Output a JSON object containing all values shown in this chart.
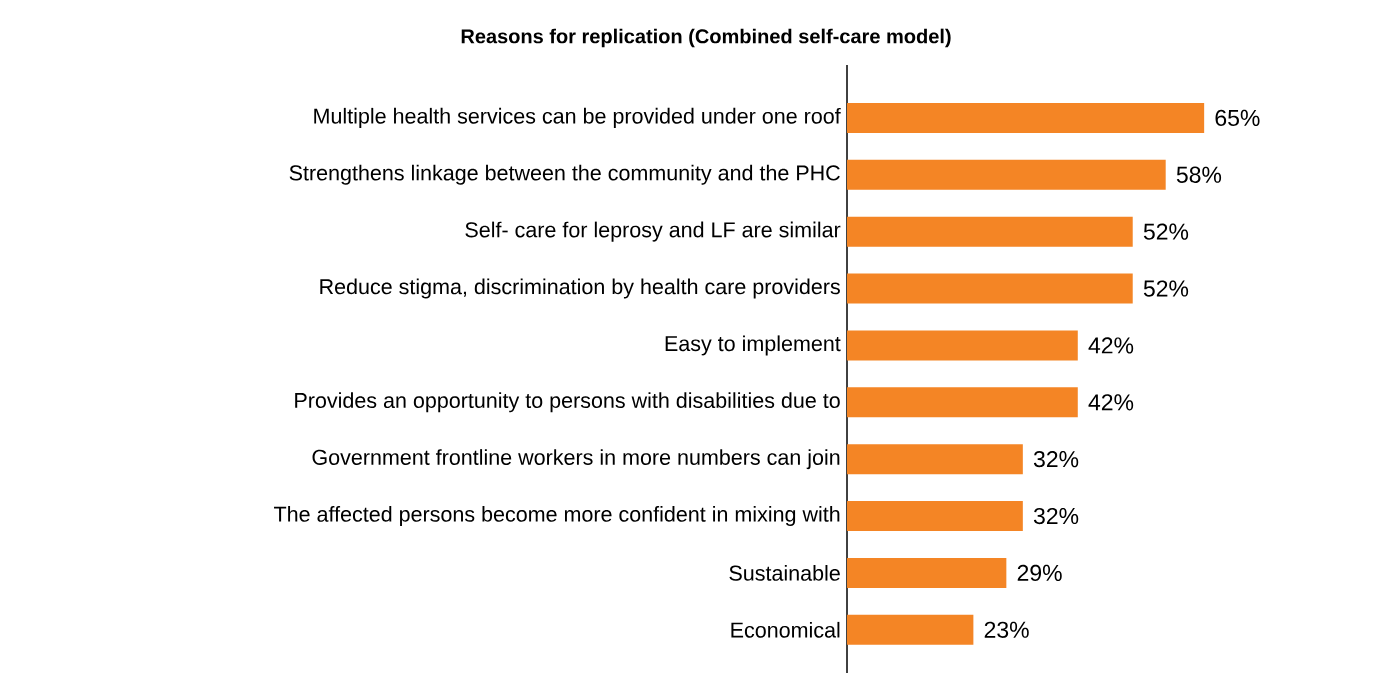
{
  "chart_data": {
    "type": "bar",
    "orientation": "horizontal",
    "title": "Reasons for replication (Combined self-care model)",
    "categories": [
      "Multiple health services can be provided under one roof",
      "Strengthens linkage between the community and the PHC",
      "Self- care for leprosy and LF are similar",
      "Reduce stigma, discrimination by health care providers",
      "Easy to implement",
      "Provides an opportunity to persons with disabilities due to",
      "Government frontline workers in more numbers can join",
      "The affected persons become more confident in mixing with",
      "Sustainable",
      "Economical"
    ],
    "values": [
      65,
      58,
      52,
      52,
      42,
      42,
      32,
      32,
      29,
      23
    ],
    "value_labels": [
      "65%",
      "58%",
      "52%",
      "52%",
      "42%",
      "42%",
      "32%",
      "32%",
      "29%",
      "23%"
    ],
    "color": "#f48525"
  }
}
